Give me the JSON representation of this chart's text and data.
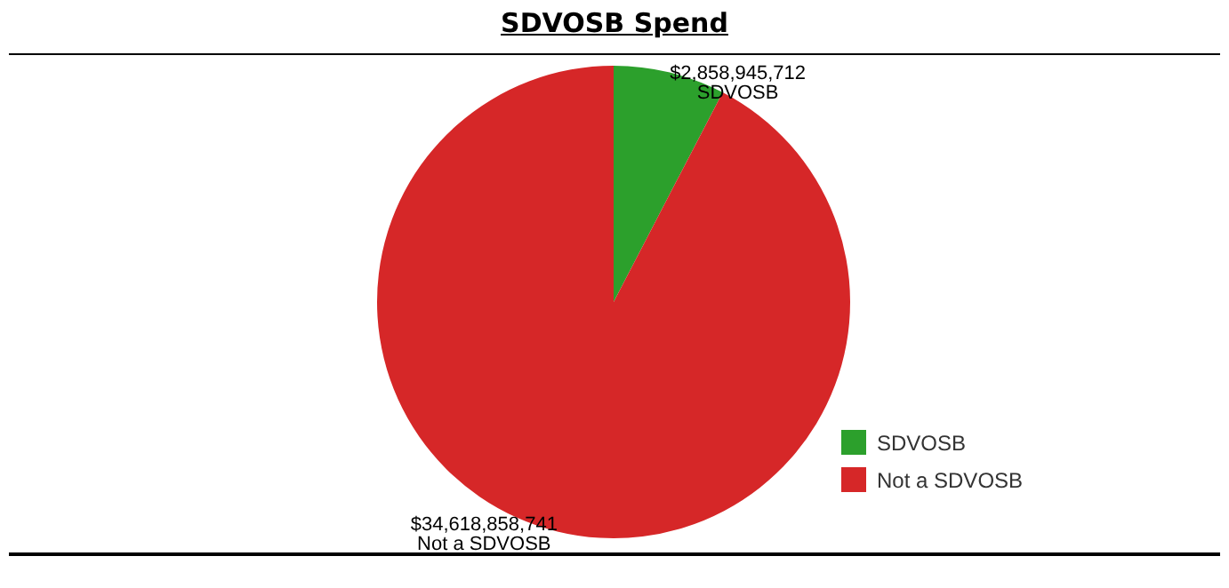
{
  "chart_data": {
    "type": "pie",
    "title": "SDVOSB Spend",
    "categories": [
      "SDVOSB",
      "Not a SDVOSB"
    ],
    "values": [
      2858945712,
      34618858741
    ],
    "colors": [
      "#2ca02c",
      "#d62728"
    ],
    "value_labels": [
      "$2,858,945,712",
      "$34,618,858,741"
    ],
    "legend": "bottom right"
  }
}
